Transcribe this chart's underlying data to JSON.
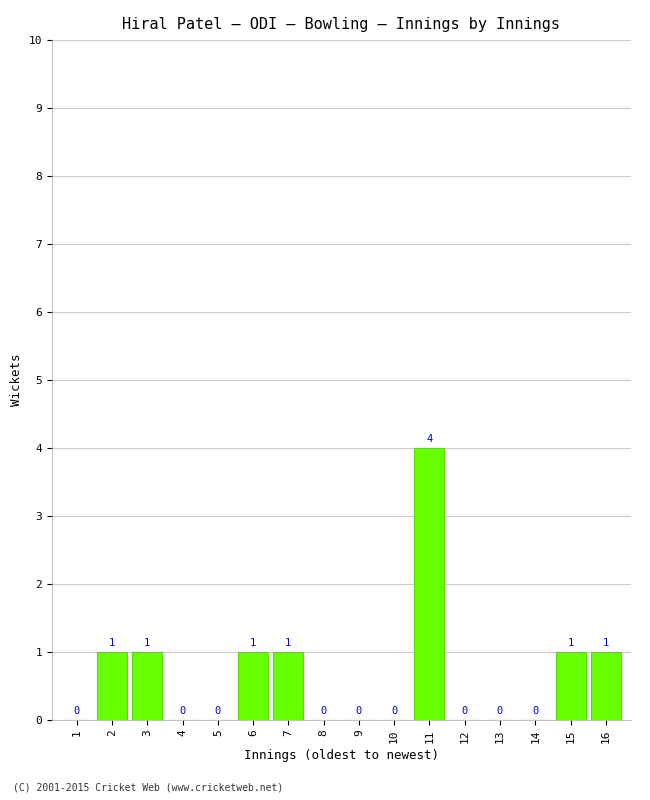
{
  "title": "Hiral Patel – ODI – Bowling – Innings by Innings",
  "xlabel": "Innings (oldest to newest)",
  "ylabel": "Wickets",
  "copyright": "(C) 2001-2015 Cricket Web (www.cricketweb.net)",
  "innings": [
    1,
    2,
    3,
    4,
    5,
    6,
    7,
    8,
    9,
    10,
    11,
    12,
    13,
    14,
    15,
    16
  ],
  "wickets": [
    0,
    1,
    1,
    0,
    0,
    1,
    1,
    0,
    0,
    0,
    4,
    0,
    0,
    0,
    1,
    1
  ],
  "bar_color": "#66ff00",
  "bar_edge_color": "#55dd00",
  "label_color": "#0000cc",
  "ylim": [
    0,
    10
  ],
  "yticks": [
    0,
    1,
    2,
    3,
    4,
    5,
    6,
    7,
    8,
    9,
    10
  ],
  "background_color": "#ffffff",
  "grid_color": "#cccccc",
  "title_fontsize": 11,
  "axis_label_fontsize": 9,
  "tick_label_fontsize": 8,
  "annotation_fontsize": 7.5,
  "bar_width": 0.85
}
